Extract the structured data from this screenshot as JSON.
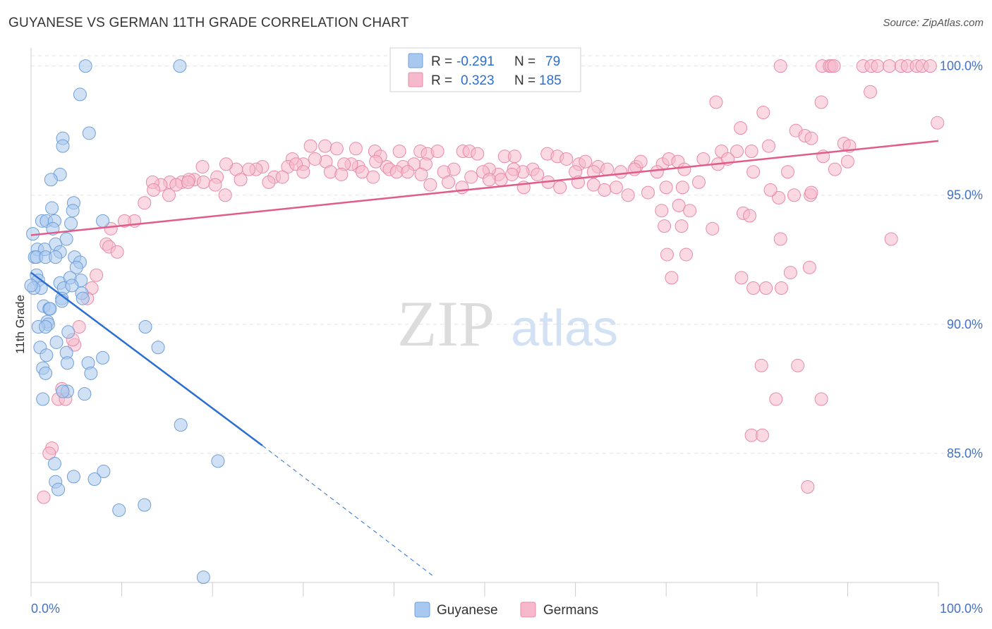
{
  "title": "GUYANESE VS GERMAN 11TH GRADE CORRELATION CHART",
  "source": "Source: ZipAtlas.com",
  "watermark": {
    "zip": "ZIP",
    "atlas": "atlas"
  },
  "colors": {
    "guyanese_fill": "#a9c8ef",
    "guyanese_stroke": "#6f9fd8",
    "guyanese_line": "#2a6fd1",
    "germans_fill": "#f6b9cc",
    "germans_stroke": "#e88aa9",
    "germans_line": "#e05c8a",
    "axis_label": "#4472c4"
  },
  "legend_box": {
    "rows": [
      {
        "r_label": "R =",
        "r_value": "-0.291",
        "n_label": "N =",
        "n_value": "79"
      },
      {
        "r_label": "R =",
        "r_value": "0.323",
        "n_label": "N =",
        "n_value": "185"
      }
    ]
  },
  "chart_data": {
    "type": "scatter",
    "title": "GUYANESE VS GERMAN 11TH GRADE CORRELATION CHART",
    "xlabel": "",
    "ylabel": "11th Grade",
    "xlim": [
      0,
      100
    ],
    "ylim": [
      80.0,
      100.7
    ],
    "x_tick_labels": [
      "0.0%",
      "100.0%"
    ],
    "y_ticks": [
      85,
      90,
      95,
      100
    ],
    "y_tick_labels": [
      "85.0%",
      "90.0%",
      "95.0%",
      "100.0%"
    ],
    "grid": true,
    "legend_position": "bottom-center",
    "series": [
      {
        "name": "Guyanese",
        "r": -0.291,
        "n": 79,
        "trend": {
          "x": [
            0,
            25.5
          ],
          "y": [
            92.0,
            85.3
          ],
          "dashed_to": [
            44.5,
            80.2
          ]
        },
        "points": [
          [
            6.0,
            100.0
          ],
          [
            16.4,
            100.0
          ],
          [
            5.4,
            98.9
          ],
          [
            6.4,
            97.4
          ],
          [
            3.5,
            97.2
          ],
          [
            3.5,
            96.9
          ],
          [
            3.2,
            95.8
          ],
          [
            2.2,
            95.6
          ],
          [
            2.3,
            94.5
          ],
          [
            4.7,
            94.7
          ],
          [
            4.6,
            94.4
          ],
          [
            1.2,
            94.0
          ],
          [
            1.7,
            94.0
          ],
          [
            2.6,
            94.0
          ],
          [
            4.4,
            93.9
          ],
          [
            7.9,
            94.0
          ],
          [
            2.4,
            93.7
          ],
          [
            0.2,
            93.5
          ],
          [
            3.9,
            93.3
          ],
          [
            2.7,
            93.1
          ],
          [
            0.7,
            92.9
          ],
          [
            1.5,
            92.9
          ],
          [
            3.2,
            92.8
          ],
          [
            0.4,
            92.6
          ],
          [
            0.6,
            92.6
          ],
          [
            1.6,
            92.6
          ],
          [
            2.7,
            92.6
          ],
          [
            4.8,
            92.6
          ],
          [
            5.4,
            92.4
          ],
          [
            5.0,
            92.2
          ],
          [
            0.6,
            91.9
          ],
          [
            0.8,
            91.7
          ],
          [
            3.2,
            91.6
          ],
          [
            4.3,
            91.8
          ],
          [
            5.5,
            91.7
          ],
          [
            1.1,
            91.4
          ],
          [
            3.6,
            91.4
          ],
          [
            4.5,
            91.5
          ],
          [
            5.6,
            91.2
          ],
          [
            3.4,
            91.0
          ],
          [
            0.3,
            91.4
          ],
          [
            5.7,
            91.0
          ],
          [
            3.4,
            90.9
          ],
          [
            1.4,
            90.7
          ],
          [
            2.0,
            90.6
          ],
          [
            2.1,
            90.6
          ],
          [
            1.8,
            90.1
          ],
          [
            1.9,
            90.0
          ],
          [
            0.8,
            89.9
          ],
          [
            1.6,
            89.9
          ],
          [
            4.1,
            89.7
          ],
          [
            12.6,
            89.9
          ],
          [
            2.8,
            89.3
          ],
          [
            1.0,
            89.1
          ],
          [
            14.0,
            89.1
          ],
          [
            3.9,
            88.9
          ],
          [
            1.7,
            88.8
          ],
          [
            7.9,
            88.7
          ],
          [
            4.0,
            88.5
          ],
          [
            6.3,
            88.5
          ],
          [
            1.3,
            88.3
          ],
          [
            1.6,
            88.1
          ],
          [
            6.6,
            88.1
          ],
          [
            4.0,
            87.4
          ],
          [
            3.5,
            87.4
          ],
          [
            5.9,
            87.3
          ],
          [
            1.3,
            87.1
          ],
          [
            16.5,
            86.1
          ],
          [
            20.6,
            84.7
          ],
          [
            2.6,
            84.6
          ],
          [
            8.0,
            84.3
          ],
          [
            4.7,
            84.1
          ],
          [
            2.7,
            83.9
          ],
          [
            7.0,
            84.0
          ],
          [
            3.0,
            83.6
          ],
          [
            9.7,
            82.8
          ],
          [
            12.5,
            83.0
          ],
          [
            19.0,
            80.2
          ],
          [
            0.0,
            91.5
          ]
        ]
      },
      {
        "name": "Germans",
        "r": 0.323,
        "n": 185,
        "trend": {
          "x": [
            0,
            100
          ],
          "y": [
            93.45,
            97.1
          ]
        },
        "points": [
          [
            82.6,
            100.0
          ],
          [
            87.2,
            100.0
          ],
          [
            88.0,
            100.0
          ],
          [
            88.2,
            100.0
          ],
          [
            88.5,
            100.0
          ],
          [
            91.7,
            100.0
          ],
          [
            92.6,
            100.0
          ],
          [
            93.3,
            100.0
          ],
          [
            94.6,
            100.0
          ],
          [
            95.9,
            100.0
          ],
          [
            96.6,
            100.0
          ],
          [
            97.6,
            100.0
          ],
          [
            98.2,
            100.0
          ],
          [
            99.1,
            100.0
          ],
          [
            92.5,
            99.0
          ],
          [
            87.1,
            98.6
          ],
          [
            75.5,
            98.6
          ],
          [
            80.7,
            98.2
          ],
          [
            78.2,
            97.6
          ],
          [
            84.3,
            97.5
          ],
          [
            85.3,
            97.3
          ],
          [
            86.0,
            97.2
          ],
          [
            99.9,
            97.8
          ],
          [
            89.6,
            97.0
          ],
          [
            90.2,
            96.9
          ],
          [
            81.3,
            96.9
          ],
          [
            77.8,
            96.7
          ],
          [
            79.4,
            96.7
          ],
          [
            76.1,
            96.7
          ],
          [
            35.8,
            96.8
          ],
          [
            30.8,
            96.9
          ],
          [
            32.4,
            96.9
          ],
          [
            33.7,
            96.8
          ],
          [
            37.9,
            96.7
          ],
          [
            38.5,
            96.5
          ],
          [
            40.6,
            96.7
          ],
          [
            42.9,
            96.7
          ],
          [
            43.7,
            96.6
          ],
          [
            44.8,
            96.7
          ],
          [
            47.6,
            96.7
          ],
          [
            48.3,
            96.7
          ],
          [
            49.2,
            96.6
          ],
          [
            52.2,
            96.5
          ],
          [
            53.3,
            96.5
          ],
          [
            56.9,
            96.6
          ],
          [
            58.0,
            96.5
          ],
          [
            59.0,
            96.4
          ],
          [
            60.4,
            96.2
          ],
          [
            61.1,
            96.3
          ],
          [
            62.5,
            96.1
          ],
          [
            63.5,
            96.0
          ],
          [
            66.7,
            96.1
          ],
          [
            67.2,
            96.3
          ],
          [
            69.6,
            96.2
          ],
          [
            70.3,
            96.4
          ],
          [
            71.3,
            96.3
          ],
          [
            74.1,
            96.4
          ],
          [
            75.7,
            96.2
          ],
          [
            76.8,
            96.4
          ],
          [
            87.3,
            96.5
          ],
          [
            90.0,
            96.3
          ],
          [
            88.6,
            96.0
          ],
          [
            83.4,
            95.9
          ],
          [
            79.6,
            95.9
          ],
          [
            72.0,
            96.0
          ],
          [
            69.0,
            95.9
          ],
          [
            66.5,
            96.0
          ],
          [
            65.0,
            95.9
          ],
          [
            62.0,
            95.9
          ],
          [
            60.0,
            95.9
          ],
          [
            55.3,
            96.0
          ],
          [
            54.2,
            95.9
          ],
          [
            53.2,
            96.0
          ],
          [
            51.5,
            95.8
          ],
          [
            50.5,
            96.0
          ],
          [
            46.6,
            96.0
          ],
          [
            45.5,
            95.9
          ],
          [
            43.5,
            96.2
          ],
          [
            42.2,
            96.2
          ],
          [
            41.0,
            96.1
          ],
          [
            39.2,
            96.1
          ],
          [
            38.0,
            96.3
          ],
          [
            36.1,
            96.1
          ],
          [
            35.3,
            96.2
          ],
          [
            34.5,
            96.2
          ],
          [
            32.5,
            96.3
          ],
          [
            31.3,
            96.4
          ],
          [
            30.0,
            96.2
          ],
          [
            28.8,
            96.4
          ],
          [
            28.3,
            96.1
          ],
          [
            26.8,
            95.7
          ],
          [
            25.5,
            96.1
          ],
          [
            24.8,
            96.0
          ],
          [
            24.0,
            96.0
          ],
          [
            22.6,
            96.0
          ],
          [
            21.5,
            96.2
          ],
          [
            18.9,
            96.1
          ],
          [
            20.5,
            95.7
          ],
          [
            18.0,
            95.6
          ],
          [
            16.6,
            95.5
          ],
          [
            17.4,
            95.6
          ],
          [
            15.3,
            95.5
          ],
          [
            14.3,
            95.4
          ],
          [
            13.4,
            95.5
          ],
          [
            13.5,
            95.2
          ],
          [
            15.2,
            95.0
          ],
          [
            16.0,
            95.4
          ],
          [
            17.3,
            95.5
          ],
          [
            19.0,
            95.5
          ],
          [
            20.3,
            95.4
          ],
          [
            21.4,
            95.0
          ],
          [
            23.1,
            95.6
          ],
          [
            26.2,
            95.5
          ],
          [
            27.7,
            95.7
          ],
          [
            29.2,
            96.2
          ],
          [
            30.0,
            95.9
          ],
          [
            33.0,
            95.9
          ],
          [
            34.2,
            95.8
          ],
          [
            36.5,
            95.9
          ],
          [
            37.7,
            95.7
          ],
          [
            39.5,
            96.0
          ],
          [
            40.3,
            95.9
          ],
          [
            41.5,
            95.9
          ],
          [
            43.0,
            95.8
          ],
          [
            44.0,
            95.4
          ],
          [
            46.0,
            95.5
          ],
          [
            47.5,
            95.3
          ],
          [
            48.5,
            95.7
          ],
          [
            49.8,
            95.9
          ],
          [
            50.5,
            95.6
          ],
          [
            51.8,
            95.6
          ],
          [
            53.0,
            95.8
          ],
          [
            54.3,
            95.3
          ],
          [
            55.8,
            95.8
          ],
          [
            57.0,
            95.5
          ],
          [
            58.3,
            95.3
          ],
          [
            60.3,
            95.5
          ],
          [
            62.0,
            95.4
          ],
          [
            63.2,
            95.2
          ],
          [
            64.5,
            95.3
          ],
          [
            65.8,
            95.0
          ],
          [
            68.0,
            95.1
          ],
          [
            70.0,
            95.3
          ],
          [
            71.8,
            95.3
          ],
          [
            69.5,
            94.4
          ],
          [
            71.4,
            94.6
          ],
          [
            72.6,
            94.4
          ],
          [
            73.6,
            95.5
          ],
          [
            78.5,
            94.3
          ],
          [
            79.2,
            94.2
          ],
          [
            82.6,
            93.3
          ],
          [
            85.9,
            95.0
          ],
          [
            84.1,
            95.0
          ],
          [
            86.0,
            95.1
          ],
          [
            82.4,
            94.9
          ],
          [
            81.5,
            95.2
          ],
          [
            75.1,
            93.7
          ],
          [
            71.7,
            93.8
          ],
          [
            94.8,
            93.3
          ],
          [
            72.2,
            92.7
          ],
          [
            70.1,
            92.7
          ],
          [
            83.7,
            92.0
          ],
          [
            85.8,
            92.2
          ],
          [
            70.6,
            91.8
          ],
          [
            78.3,
            91.8
          ],
          [
            69.8,
            93.8
          ],
          [
            79.6,
            91.4
          ],
          [
            81.0,
            91.4
          ],
          [
            82.7,
            91.4
          ],
          [
            80.5,
            88.4
          ],
          [
            84.5,
            88.4
          ],
          [
            82.1,
            87.1
          ],
          [
            87.1,
            87.1
          ],
          [
            79.4,
            85.7
          ],
          [
            80.6,
            85.7
          ],
          [
            85.6,
            83.7
          ],
          [
            12.5,
            94.7
          ],
          [
            11.4,
            94.0
          ],
          [
            10.3,
            94.0
          ],
          [
            8.8,
            93.7
          ],
          [
            8.3,
            93.1
          ],
          [
            8.6,
            93.0
          ],
          [
            9.5,
            92.8
          ],
          [
            7.2,
            91.9
          ],
          [
            6.7,
            91.4
          ],
          [
            6.2,
            91.0
          ],
          [
            5.3,
            89.9
          ],
          [
            4.8,
            89.2
          ],
          [
            4.6,
            89.4
          ],
          [
            3.4,
            87.5
          ],
          [
            3.0,
            87.1
          ],
          [
            3.8,
            87.1
          ],
          [
            2.3,
            85.2
          ],
          [
            2.0,
            85.0
          ],
          [
            1.4,
            83.3
          ]
        ]
      }
    ]
  }
}
